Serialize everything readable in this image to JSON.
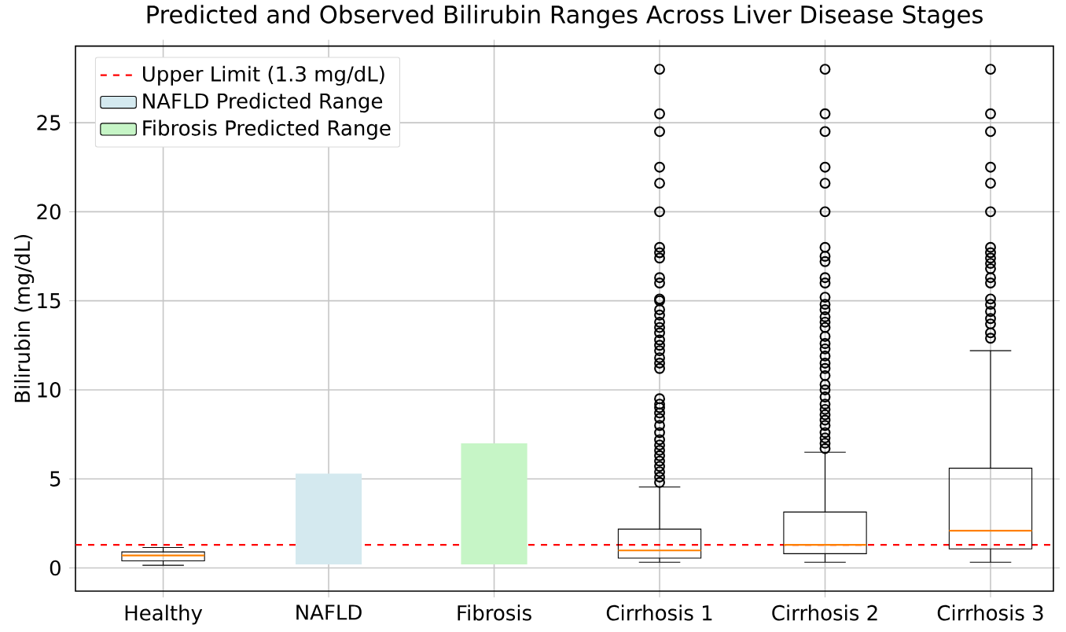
{
  "chart_data": {
    "type": "box",
    "title": "Predicted and Observed Bilirubin Ranges Across Liver Disease Stages",
    "ylabel": "Bilirubin (mg/dL)",
    "categories": [
      "Healthy",
      "NAFLD",
      "Fibrosis",
      "Cirrhosis 1",
      "Cirrhosis 2",
      "Cirrhosis 3"
    ],
    "ylim": [
      -1.3,
      29.3
    ],
    "yticks": [
      0,
      5,
      10,
      15,
      20,
      25
    ],
    "grid": true,
    "legend": "top left",
    "marker": "circle",
    "ref_lines": [
      {
        "axis": "y",
        "value": 1.3,
        "label": "Upper Limit (1.3 mg/dL)",
        "color": "#ff0000",
        "line_style": "dashed"
      }
    ],
    "series": [
      {
        "color": "#000000",
        "boxes": [
          {
            "low": 0.15,
            "q1": 0.4,
            "median": 0.7,
            "q3": 0.9,
            "high": 1.15
          },
          null,
          null,
          {
            "low": 0.32,
            "q1": 0.55,
            "median": 0.98,
            "q3": 2.18,
            "high": 4.55,
            "outliers": [
              28.0,
              25.5,
              24.5,
              22.5,
              21.6,
              20.0,
              18.0,
              17.7,
              17.4,
              16.3,
              16.0,
              15.1,
              15.0,
              14.5,
              14.2,
              13.8,
              13.5,
              13.2,
              12.8,
              12.5,
              12.2,
              11.8,
              11.5,
              11.2,
              9.5,
              9.2,
              9.0,
              8.7,
              8.4,
              8.0,
              7.6,
              7.2,
              6.9,
              6.6,
              6.3,
              6.0,
              5.7,
              5.4,
              5.1,
              4.8
            ]
          },
          {
            "low": 0.32,
            "q1": 0.8,
            "median": 1.3,
            "q3": 3.14,
            "high": 6.5,
            "outliers": [
              28.0,
              25.5,
              24.5,
              22.5,
              21.6,
              20.0,
              18.0,
              17.5,
              17.2,
              16.3,
              16.0,
              15.2,
              14.8,
              14.5,
              14.1,
              13.8,
              13.5,
              13.0,
              12.6,
              12.3,
              11.9,
              11.5,
              11.2,
              10.8,
              10.3,
              10.0,
              9.6,
              9.2,
              8.9,
              8.6,
              8.3,
              8.0,
              7.6,
              7.3,
              7.0,
              6.7
            ]
          },
          {
            "low": 0.32,
            "q1": 1.07,
            "median": 2.09,
            "q3": 5.6,
            "high": 12.2,
            "outliers": [
              28.0,
              25.5,
              24.5,
              22.5,
              21.6,
              20.0,
              18.0,
              17.7,
              17.4,
              17.1,
              16.8,
              16.3,
              16.0,
              15.1,
              14.8,
              14.4,
              14.0,
              13.7,
              13.2,
              12.9
            ]
          }
        ]
      },
      {
        "type": "bar",
        "name": "NAFLD Predicted Range",
        "color": "#d4e9ef",
        "values": [
          null,
          5.1,
          null,
          null,
          null,
          null
        ],
        "base": [
          null,
          0.2,
          null,
          null,
          null,
          null
        ]
      },
      {
        "type": "bar",
        "name": "Fibrosis Predicted Range",
        "color": "#c6f5c6",
        "values": [
          null,
          null,
          6.8,
          null,
          null,
          null
        ],
        "base": [
          null,
          null,
          0.2,
          null,
          null,
          null
        ]
      }
    ]
  }
}
